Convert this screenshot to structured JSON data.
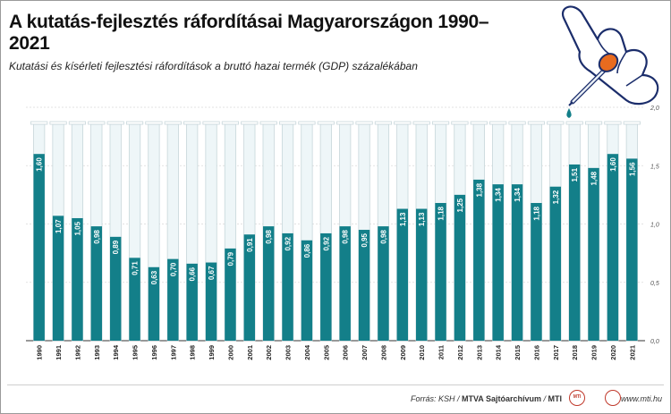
{
  "title": "A kutatás-fejlesztés ráfordításai Magyarországon 1990–2021",
  "subtitle": "Kutatási és kísérleti fejlesztési ráfordítások a bruttó hazai termék (GDP) százalékában",
  "footer": {
    "source_prefix": "Forrás: KSH / ",
    "source_bold1": "MTVA Sajtóarchívum",
    "source_sep": " / ",
    "source_bold2": "MTI",
    "web": "www.mti.hu",
    "logo_mti": "MTI"
  },
  "colors": {
    "bar": "#137f89",
    "tube_fill": "#eef6f8",
    "tube_outline": "#c7d6da",
    "drop": "#137f89",
    "accent_red": "#c0392b"
  },
  "chart_data": {
    "type": "bar",
    "categories": [
      "1990",
      "1991",
      "1992",
      "1993",
      "1994",
      "1995",
      "1996",
      "1997",
      "1998",
      "1999",
      "2000",
      "2001",
      "2002",
      "2003",
      "2004",
      "2005",
      "2006",
      "2007",
      "2008",
      "2009",
      "2010",
      "2011",
      "2012",
      "2013",
      "2014",
      "2015",
      "2016",
      "2017",
      "2018",
      "2019",
      "2020",
      "2021"
    ],
    "values": [
      1.6,
      1.07,
      1.05,
      0.98,
      0.89,
      0.71,
      0.63,
      0.7,
      0.66,
      0.67,
      0.79,
      0.91,
      0.98,
      0.92,
      0.86,
      0.92,
      0.98,
      0.95,
      0.98,
      1.13,
      1.13,
      1.18,
      1.25,
      1.38,
      1.34,
      1.34,
      1.18,
      1.32,
      1.51,
      1.48,
      1.6,
      1.56
    ],
    "value_labels": [
      "1,60",
      "1,07",
      "1,05",
      "0,98",
      "0,89",
      "0,71",
      "0,63",
      "0,70",
      "0,66",
      "0,67",
      "0,79",
      "0,91",
      "0,98",
      "0,92",
      "0,86",
      "0,92",
      "0,98",
      "0,95",
      "0,98",
      "1,13",
      "1,13",
      "1,18",
      "1,25",
      "1,38",
      "1,34",
      "1,34",
      "1,18",
      "1,32",
      "1,51",
      "1,48",
      "1,60",
      "1,56"
    ],
    "ylim": [
      0,
      2.0
    ],
    "yticks": [
      0,
      0.5,
      1.0,
      1.5,
      2.0
    ],
    "ytick_labels": [
      "0,0",
      "0,5",
      "1,0",
      "1,5",
      "2,0"
    ],
    "grid": true,
    "xlabel": "",
    "ylabel": ""
  }
}
